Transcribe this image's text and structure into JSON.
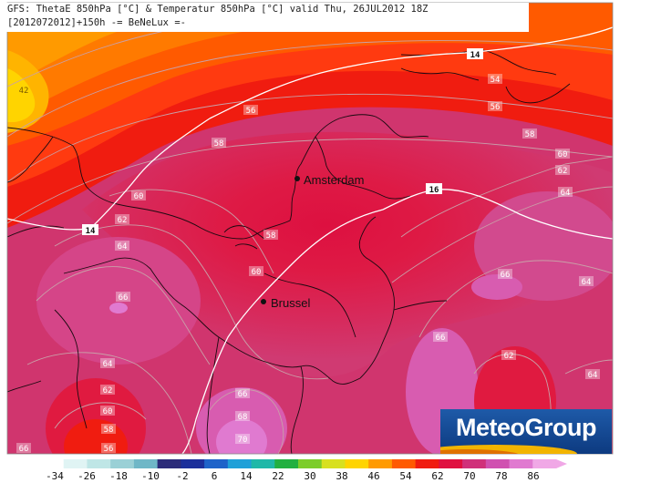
{
  "header": {
    "line1": "GFS: ThetaE 850hPa [°C] & Temperatur 850hPa [°C] valid Thu, 26JUL2012 18Z",
    "line2": "[2012072012]+150h -= BeNeLux =-"
  },
  "cities": [
    {
      "name": "Amsterdam"
    },
    {
      "name": "Brussel"
    }
  ],
  "thetae_contour_labels": [
    "42",
    "54",
    "56",
    "58",
    "58",
    "60",
    "62",
    "64",
    "66",
    "66",
    "64",
    "62",
    "60",
    "58",
    "56",
    "64",
    "66",
    "68",
    "70",
    "64",
    "62",
    "66",
    "64",
    "66",
    "58",
    "60",
    "60",
    "62",
    "56"
  ],
  "temperature_isotherm_labels": [
    "14",
    "16",
    "14"
  ],
  "logo": {
    "text": "MeteoGroup"
  },
  "color_scale": {
    "ticks": [
      "-34",
      "-26",
      "-18",
      "-10",
      "-2",
      "6",
      "14",
      "22",
      "30",
      "38",
      "46",
      "54",
      "62",
      "70",
      "78",
      "86"
    ],
    "colors": [
      "#ffffff",
      "#e0f4f4",
      "#bfe6e6",
      "#9ad0d6",
      "#6fb7c7",
      "#2c2c7a",
      "#1b2f9b",
      "#1e63c9",
      "#20a0d8",
      "#20b8a8",
      "#22b040",
      "#7ccd2a",
      "#d8e020",
      "#ffd400",
      "#ff9a00",
      "#ff5a00",
      "#f01c10",
      "#e01040",
      "#d0307a",
      "#d050b0",
      "#e07ad0",
      "#f0a8e6"
    ]
  }
}
